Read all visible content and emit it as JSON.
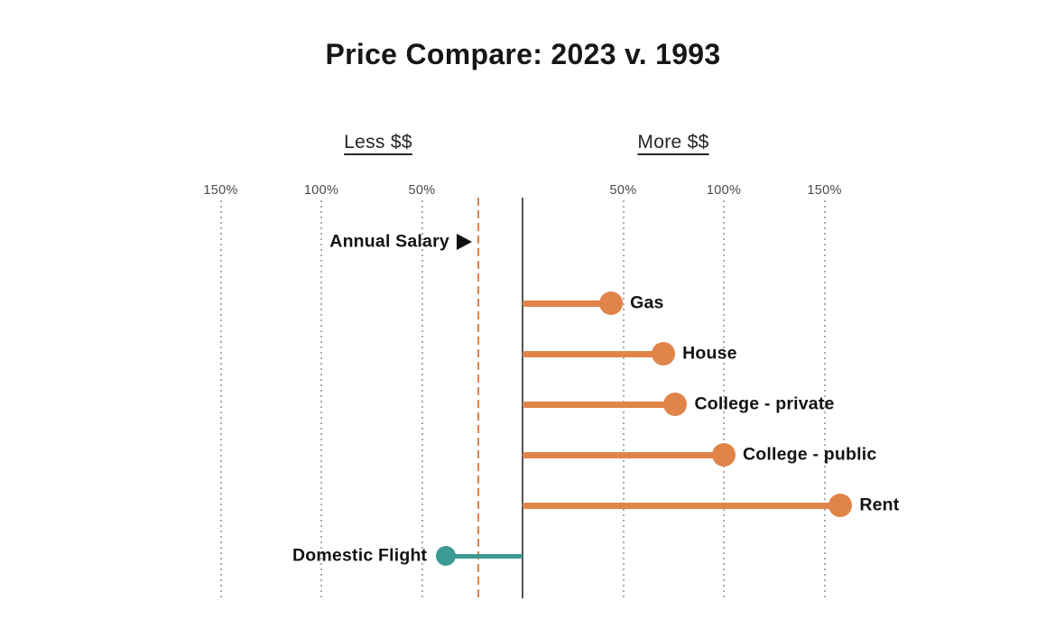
{
  "title": "Price Compare: 2023 v. 1993",
  "side_labels": {
    "less": "Less $$",
    "more": "More $$"
  },
  "colors": {
    "orange": "#E08449",
    "teal": "#3B9A94",
    "axis": "#555555",
    "grid": "#ABABAB",
    "text": "#161616",
    "tick_text": "#4A4A4A",
    "marker": "#111111"
  },
  "chart_data": {
    "type": "bar",
    "subtype": "horizontal-lollipop",
    "title": "Price Compare: 2023 v. 1993",
    "value_format": "percent change vs 1993",
    "categories": [
      "Gas",
      "House",
      "College - private",
      "College - public",
      "Rent",
      "Domestic Flight"
    ],
    "values": [
      44,
      70,
      76,
      100,
      158,
      -38
    ],
    "series_colors": [
      "orange",
      "orange",
      "orange",
      "orange",
      "orange",
      "teal"
    ],
    "reference_line": {
      "label": "Annual Salary",
      "value": -22,
      "style": "dashed",
      "color": "orange",
      "marker": "right-triangle"
    },
    "axis": {
      "ticks": [
        -150,
        -100,
        -50,
        50,
        100,
        150
      ],
      "tick_labels": [
        "150%",
        "100%",
        "50%",
        "50%",
        "100%",
        "150%"
      ],
      "zero_line": true,
      "xlim": [
        -170,
        180
      ],
      "negative_side_label": "Less $$",
      "positive_side_label": "More $$"
    },
    "grid": "vertical-dotted",
    "legend": null
  }
}
